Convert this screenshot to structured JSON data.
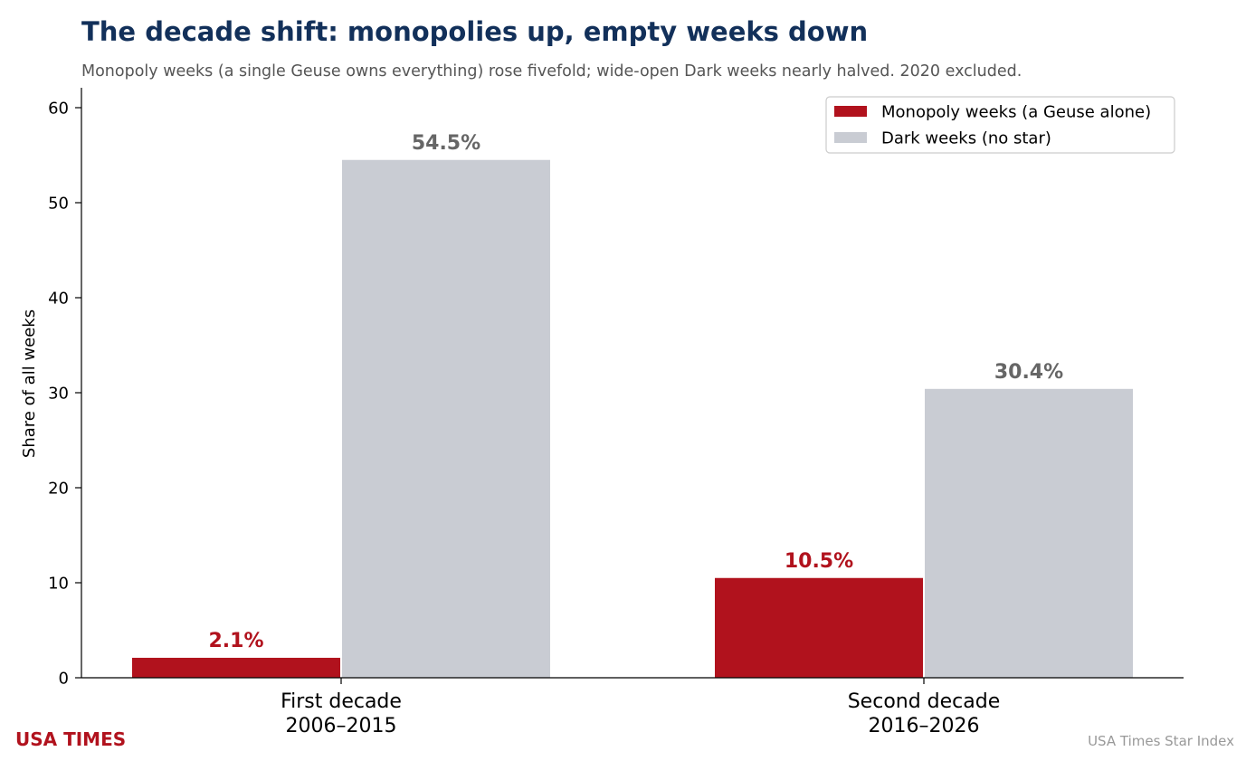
{
  "chart_data": {
    "type": "bar",
    "title": "The decade shift: monopolies up, empty weeks down",
    "subtitle": "Monopoly weeks (a single Geuse owns everything) rose fivefold; wide-open Dark weeks nearly halved. 2020 excluded.",
    "categories": [
      [
        "First decade",
        "2006–2015"
      ],
      [
        "Second decade",
        "2016–2026"
      ]
    ],
    "series": [
      {
        "name": "Monopoly weeks (a Geuse alone)",
        "values": [
          2.1,
          10.5
        ],
        "labels": [
          "2.1%",
          "10.5%"
        ],
        "color": "#b1121d",
        "label_color": "#b1121d"
      },
      {
        "name": "Dark weeks (no star)",
        "values": [
          54.5,
          30.4
        ],
        "labels": [
          "54.5%",
          "30.4%"
        ],
        "color": "#c9ccd3",
        "label_color": "#666666"
      }
    ],
    "xlabel": "",
    "ylabel": "Share of all weeks",
    "ylim": [
      0,
      62
    ],
    "yticks": [
      0,
      10,
      20,
      30,
      40,
      50,
      60
    ],
    "grid": false,
    "legend_position": "top-right",
    "title_color": "#12305a"
  },
  "branding": {
    "brand": "USA TIMES",
    "brand_color": "#b1121d",
    "source": "USA Times Star Index"
  }
}
